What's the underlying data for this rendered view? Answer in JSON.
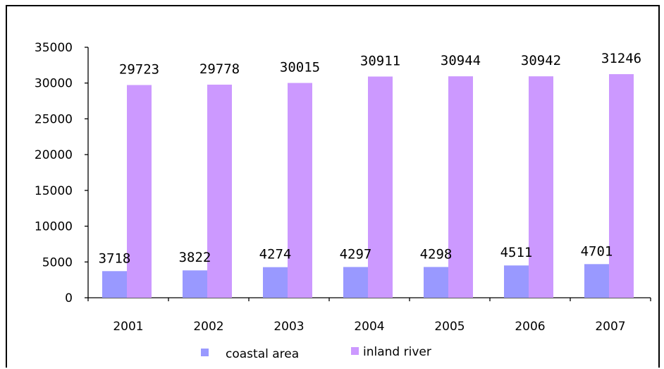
{
  "chart_data": {
    "type": "bar",
    "categories": [
      "2001",
      "2002",
      "2003",
      "2004",
      "2005",
      "2006",
      "2007"
    ],
    "series": [
      {
        "name": "coastal area",
        "values": [
          3718,
          3822,
          4274,
          4297,
          4298,
          4511,
          4701
        ],
        "color": "#9999ff"
      },
      {
        "name": "inland river",
        "values": [
          29723,
          29778,
          30015,
          30911,
          30944,
          30942,
          31246
        ],
        "color": "#cc99ff"
      }
    ],
    "title": "",
    "xlabel": "",
    "ylabel": "",
    "ylim": [
      0,
      35000
    ],
    "yticks": [
      0,
      5000,
      10000,
      15000,
      20000,
      25000,
      30000,
      35000
    ],
    "grid": false,
    "legend_position": "bottom"
  }
}
